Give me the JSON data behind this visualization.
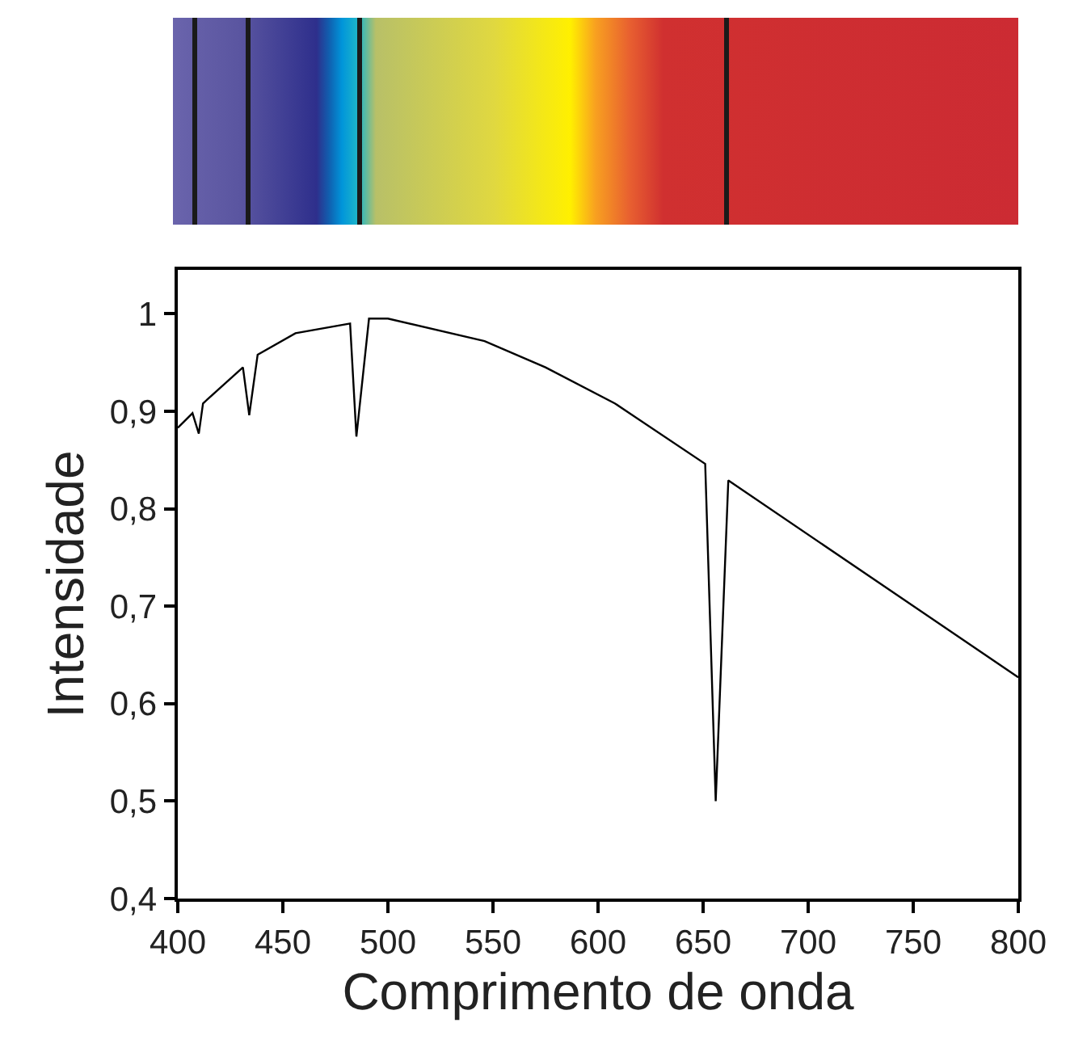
{
  "chart_data": {
    "type": "line",
    "xlabel": "Comprimento de onda",
    "ylabel": "Intensidade",
    "x": [
      400,
      407,
      410,
      412,
      431,
      434,
      438,
      456,
      482,
      485,
      491,
      500,
      546,
      575,
      608,
      651,
      656,
      662,
      800
    ],
    "series": [
      {
        "color": "#000000",
        "values": [
          0.883,
          0.898,
          0.877,
          0.908,
          0.945,
          0.896,
          0.958,
          0.98,
          0.99,
          0.874,
          0.995,
          0.995,
          0.972,
          0.945,
          0.908,
          0.846,
          0.5,
          0.829,
          0.627
        ]
      }
    ],
    "xlim": [
      400,
      800
    ],
    "xticks": [
      400,
      450,
      500,
      550,
      600,
      650,
      700,
      750,
      800
    ],
    "ylim": [
      0.4,
      1.045
    ],
    "yticks": [
      {
        "value": 0.4,
        "label": "0,4"
      },
      {
        "value": 0.5,
        "label": "0,5"
      },
      {
        "value": 0.6,
        "label": "0,6"
      },
      {
        "value": 0.7,
        "label": "0,7"
      },
      {
        "value": 0.8,
        "label": "0,8"
      },
      {
        "value": 0.9,
        "label": "0,9"
      },
      {
        "value": 1,
        "label": "1"
      }
    ],
    "grid": false,
    "marker": "none",
    "line_style": "solid"
  }
}
